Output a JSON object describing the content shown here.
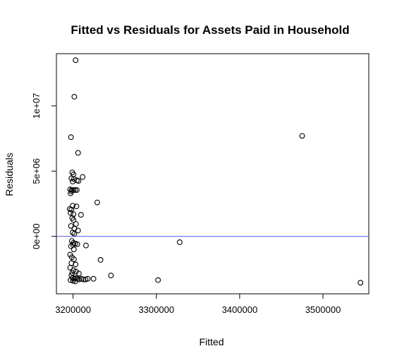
{
  "chart_data": {
    "type": "scatter",
    "title": "Fitted vs Residuals for Assets Paid in Household",
    "xlabel": "Fitted",
    "ylabel": "Residuals",
    "xlim": [
      3180000,
      3555000
    ],
    "ylim": [
      -4400000,
      14000000
    ],
    "xticks": [
      3200000,
      3300000,
      3400000,
      3500000
    ],
    "xtick_labels": [
      "3200000",
      "3300000",
      "3400000",
      "3500000"
    ],
    "yticks": [
      0,
      5000000,
      10000000
    ],
    "ytick_labels": [
      "0e+00",
      "5e+06",
      "1e+07"
    ],
    "hline": {
      "y": 0,
      "color": "#6a6af0"
    },
    "marker": {
      "shape": "open-circle",
      "color": "#000000"
    },
    "points": [
      [
        3203000,
        13500000
      ],
      [
        3201500,
        10700000
      ],
      [
        3197500,
        7600000
      ],
      [
        3206000,
        6400000
      ],
      [
        3475000,
        7700000
      ],
      [
        3199000,
        4900000
      ],
      [
        3200500,
        4750000
      ],
      [
        3211500,
        4550000
      ],
      [
        3198000,
        4450000
      ],
      [
        3201000,
        4400000
      ],
      [
        3204500,
        4300000
      ],
      [
        3206500,
        4250000
      ],
      [
        3199500,
        4200000
      ],
      [
        3196500,
        3600000
      ],
      [
        3198500,
        3550000
      ],
      [
        3200500,
        3550000
      ],
      [
        3202500,
        3550000
      ],
      [
        3204500,
        3550000
      ],
      [
        3198000,
        3450000
      ],
      [
        3197000,
        3300000
      ],
      [
        3229000,
        2600000
      ],
      [
        3199500,
        2350000
      ],
      [
        3204000,
        2300000
      ],
      [
        3196000,
        2100000
      ],
      [
        3198000,
        2050000
      ],
      [
        3197000,
        1800000
      ],
      [
        3200500,
        1700000
      ],
      [
        3209500,
        1650000
      ],
      [
        3199000,
        1400000
      ],
      [
        3200500,
        1250000
      ],
      [
        3203500,
        950000
      ],
      [
        3197500,
        800000
      ],
      [
        3201500,
        600000
      ],
      [
        3206000,
        450000
      ],
      [
        3199500,
        300000
      ],
      [
        3201500,
        200000
      ],
      [
        3198500,
        -350000
      ],
      [
        3200500,
        -500000
      ],
      [
        3202500,
        -550000
      ],
      [
        3205000,
        -600000
      ],
      [
        3200000,
        -650000
      ],
      [
        3215500,
        -700000
      ],
      [
        3197500,
        -750000
      ],
      [
        3328000,
        -450000
      ],
      [
        3201000,
        -1000000
      ],
      [
        3196500,
        -1400000
      ],
      [
        3198500,
        -1600000
      ],
      [
        3201000,
        -1750000
      ],
      [
        3233000,
        -1800000
      ],
      [
        3198000,
        -2050000
      ],
      [
        3203000,
        -2150000
      ],
      [
        3196500,
        -2400000
      ],
      [
        3200500,
        -2600000
      ],
      [
        3199000,
        -2800000
      ],
      [
        3203500,
        -2700000
      ],
      [
        3207000,
        -2850000
      ],
      [
        3198000,
        -3000000
      ],
      [
        3245500,
        -3000000
      ],
      [
        3199500,
        -3200000
      ],
      [
        3201500,
        -3250000
      ],
      [
        3203500,
        -3200000
      ],
      [
        3205500,
        -3250000
      ],
      [
        3207500,
        -3300000
      ],
      [
        3210000,
        -3250000
      ],
      [
        3212500,
        -3300000
      ],
      [
        3215000,
        -3300000
      ],
      [
        3217500,
        -3250000
      ],
      [
        3224500,
        -3250000
      ],
      [
        3197000,
        -3350000
      ],
      [
        3200000,
        -3400000
      ],
      [
        3202500,
        -3450000
      ],
      [
        3302000,
        -3350000
      ],
      [
        3545000,
        -3550000
      ]
    ]
  }
}
